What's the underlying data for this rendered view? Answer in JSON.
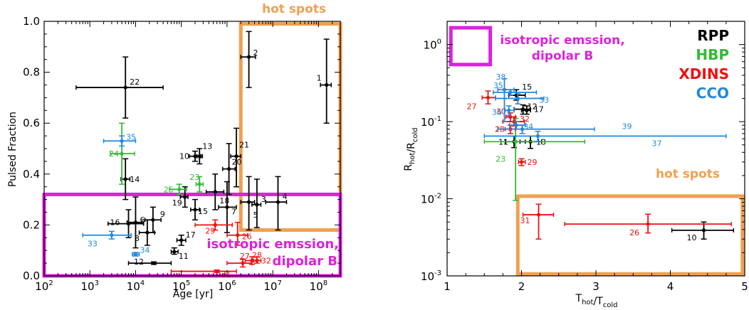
{
  "chart_data": [
    {
      "type": "scatter",
      "xscale": "log",
      "xlim": [
        100,
        300000000
      ],
      "ylim": [
        0,
        1
      ],
      "xlabel": "Age [yr]",
      "ylabel": "Pulsed Fraction",
      "xtick_values": [
        100,
        1000,
        10000,
        100000,
        1000000,
        10000000,
        100000000
      ],
      "xtick_base": "10",
      "xtick_exps": [
        "2",
        "3",
        "4",
        "5",
        "6",
        "7",
        "8"
      ],
      "ytick_values": [
        0,
        0.2,
        0.4,
        0.6,
        0.8,
        1.0
      ],
      "ytick_labels": [
        "0.0",
        "0.2",
        "0.4",
        "0.6",
        "0.8",
        "1.0"
      ],
      "class_colors": {
        "RPP": "#000000",
        "HBP": "#33bb33",
        "XDINS": "#ee1111",
        "CCO": "#2288dd"
      },
      "regions": [
        {
          "label": "hot spots",
          "color": "#f0a050",
          "x": [
            2000000,
            300000000
          ],
          "y": [
            0.18,
            0.99
          ]
        },
        {
          "label": "isotropic emssion, dipolar B",
          "color": "#dd22dd",
          "x": [
            100,
            300000000
          ],
          "y": [
            0,
            0.32
          ]
        }
      ],
      "points": [
        {
          "id": "1",
          "class": "RPP",
          "x": 150000000,
          "y": 0.75,
          "xerr": [
            110000000,
            190000000
          ],
          "yerr": [
            0.6,
            0.93
          ]
        },
        {
          "id": "2",
          "class": "RPP",
          "x": 3000000,
          "y": 0.86,
          "xerr": [
            2000000,
            4200000
          ],
          "yerr": [
            0.74,
            0.96
          ]
        },
        {
          "id": "3",
          "class": "RPP",
          "x": 4500000,
          "y": 0.28,
          "xerr": [
            3500000,
            5500000
          ],
          "yerr": [
            0.19,
            0.38
          ]
        },
        {
          "id": "4",
          "class": "RPP",
          "x": 13000000,
          "y": 0.29,
          "xerr": [
            7000000,
            20000000
          ],
          "yerr": [
            0.18,
            0.39
          ]
        },
        {
          "id": "5",
          "class": "RPP",
          "x": 3000000,
          "y": 0.29,
          "xerr": [
            2000000,
            4000000
          ],
          "yerr": [
            0.18,
            0.39
          ]
        },
        {
          "id": "6",
          "class": "RPP",
          "x": 10000,
          "y": 0.21,
          "xerr": [
            6500,
            14000
          ],
          "yerr": [
            0.11,
            0.31
          ]
        },
        {
          "id": "7",
          "class": "RPP",
          "x": 1000000,
          "y": 0.27,
          "xerr": [
            650000,
            1600000
          ],
          "yerr": [
            0.17,
            0.37
          ]
        },
        {
          "id": "8",
          "class": "RPP",
          "x": 18000,
          "y": 0.17,
          "xerr": [
            12000,
            26000
          ],
          "yerr": [
            0.12,
            0.22
          ]
        },
        {
          "id": "9",
          "class": "RPP",
          "x": 24000,
          "y": 0.22,
          "xerr": [
            16000,
            36000
          ],
          "yerr": [
            0.17,
            0.27
          ]
        },
        {
          "id": "10",
          "class": "RPP",
          "x": 200000,
          "y": 0.47,
          "xerr": [
            150000,
            270000
          ],
          "yerr": [
            0.45,
            0.49
          ]
        },
        {
          "id": "11",
          "class": "RPP",
          "x": 70000,
          "y": 0.095,
          "xerr": [
            60000,
            85000
          ],
          "yerr": [
            0.085,
            0.11
          ]
        },
        {
          "id": "12",
          "class": "RPP",
          "x": 25000,
          "y": 0.05,
          "xerr": [
            7000,
            60000
          ],
          "yerr": [
            0.045,
            0.055
          ]
        },
        {
          "id": "13",
          "class": "RPP",
          "x": 250000,
          "y": 0.47,
          "xerr": [
            220000,
            290000
          ],
          "yerr": [
            0.44,
            0.5
          ]
        },
        {
          "id": "14",
          "class": "RPP",
          "x": 6000,
          "y": 0.38,
          "xerr": [
            4800,
            7500
          ],
          "yerr": [
            0.3,
            0.46
          ]
        },
        {
          "id": "15",
          "class": "RPP",
          "x": 200000,
          "y": 0.26,
          "xerr": [
            160000,
            250000
          ],
          "yerr": [
            0.22,
            0.3
          ]
        },
        {
          "id": "16",
          "class": "RPP",
          "x": 7000,
          "y": 0.205,
          "xerr": [
            2500,
            15000
          ],
          "yerr": [
            0.15,
            0.26
          ]
        },
        {
          "id": "17",
          "class": "RPP",
          "x": 100000,
          "y": 0.14,
          "xerr": [
            80000,
            125000
          ],
          "yerr": [
            0.12,
            0.16
          ]
        },
        {
          "id": "18",
          "class": "RPP",
          "x": 550000,
          "y": 0.33,
          "xerr": [
            350000,
            850000
          ],
          "yerr": [
            0.26,
            0.4
          ]
        },
        {
          "id": "19",
          "class": "RPP",
          "x": 120000,
          "y": 0.31,
          "xerr": [
            95000,
            140000
          ],
          "yerr": [
            0.27,
            0.35
          ]
        },
        {
          "id": "20",
          "class": "RPP",
          "x": 1100000,
          "y": 0.42,
          "xerr": [
            800000,
            1500000
          ],
          "yerr": [
            0.32,
            0.52
          ]
        },
        {
          "id": "21",
          "class": "RPP",
          "x": 1600000,
          "y": 0.47,
          "xerr": [
            1200000,
            2000000
          ],
          "yerr": [
            0.35,
            0.58
          ]
        },
        {
          "id": "22",
          "class": "RPP",
          "x": 6000,
          "y": 0.74,
          "xerr": [
            500,
            40000
          ],
          "yerr": [
            0.62,
            0.86
          ]
        },
        {
          "id": "23",
          "class": "HBP",
          "x": 250000,
          "y": 0.36,
          "xerr": [
            210000,
            300000
          ],
          "yerr": [
            0.33,
            0.39
          ]
        },
        {
          "id": "24",
          "class": "HBP",
          "x": 5000,
          "y": 0.48,
          "xerr": [
            2800,
            9500
          ],
          "yerr": [
            0.36,
            0.6
          ]
        },
        {
          "id": "25",
          "class": "HBP",
          "x": 90000,
          "y": 0.34,
          "xerr": [
            55000,
            130000
          ],
          "yerr": [
            0.32,
            0.36
          ]
        },
        {
          "id": "26",
          "class": "XDINS",
          "x": 1700000,
          "y": 0.16,
          "xerr": [
            1000000,
            2800000
          ],
          "yerr": [
            0.12,
            0.21
          ]
        },
        {
          "id": "27",
          "class": "XDINS",
          "x": 2200000,
          "y": 0.05,
          "xerr": [
            1000000,
            3500000
          ],
          "yerr": [
            0.035,
            0.065
          ]
        },
        {
          "id": "28",
          "class": "XDINS",
          "x": 3500000,
          "y": 0.06,
          "xerr": [
            2500000,
            4500000
          ],
          "yerr": [
            0.045,
            0.075
          ]
        },
        {
          "id": "29",
          "class": "XDINS",
          "x": 550000,
          "y": 0.2,
          "xerr": [
            200000,
            1300000
          ],
          "yerr": [
            0.18,
            0.22
          ]
        },
        {
          "id": "31",
          "class": "XDINS",
          "x": 600000,
          "y": 0.018,
          "xerr": [
            60000,
            1600000
          ],
          "yerr": [
            0.013,
            0.023
          ]
        },
        {
          "id": "32",
          "class": "XDINS",
          "x": 4500000,
          "y": 0.06,
          "xerr": [
            3800000,
            5500000
          ],
          "yerr": [
            0.05,
            0.075
          ]
        },
        {
          "id": "33",
          "class": "CCO",
          "x": 3000,
          "y": 0.16,
          "xerr": [
            700,
            8000
          ],
          "yerr": [
            0.145,
            0.175
          ]
        },
        {
          "id": "34",
          "class": "CCO",
          "x": 10000,
          "y": 0.085,
          "xerr": [
            8500,
            12000
          ],
          "yerr": [
            0.078,
            0.092
          ]
        },
        {
          "id": "35",
          "class": "CCO",
          "x": 5000,
          "y": 0.53,
          "xerr": [
            2000,
            10000
          ],
          "yerr": [
            0.51,
            0.55
          ]
        }
      ]
    },
    {
      "type": "scatter",
      "yscale": "log",
      "xlim": [
        1,
        5
      ],
      "ylim": [
        0.001,
        2
      ],
      "xlabel": "T_hot/T_cold",
      "ylabel": "R_hot/R_cold",
      "xtick_values": [
        1,
        2,
        3,
        4,
        5
      ],
      "xtick_labels": [
        "1",
        "2",
        "3",
        "4",
        "5"
      ],
      "ytick_values": [
        0.001,
        0.01,
        0.1,
        1
      ],
      "ytick_base": "10",
      "ytick_exps": [
        "-3",
        "-2",
        "-1",
        "0"
      ],
      "legend": {
        "position": "top-right",
        "entries": [
          {
            "label": "RPP",
            "color": "#000000"
          },
          {
            "label": "HBP",
            "color": "#33bb33"
          },
          {
            "label": "XDINS",
            "color": "#ee1111"
          },
          {
            "label": "CCO",
            "color": "#2288dd"
          }
        ]
      },
      "regions": [
        {
          "label": "isotropic emssion, dipolar B",
          "color": "#dd22dd",
          "x": [
            1.05,
            1.58
          ],
          "y": [
            0.55,
            1.65
          ]
        },
        {
          "label": "hot spots",
          "color": "#f0a050",
          "x": [
            1.95,
            4.97
          ],
          "y": [
            0.00106,
            0.0108
          ]
        }
      ],
      "points": [
        {
          "id": "10",
          "class": "RPP",
          "x": 4.45,
          "y": 0.0039,
          "xerr": [
            4.02,
            4.85
          ],
          "yerr": [
            0.003,
            0.005
          ]
        },
        {
          "id": "11",
          "class": "RPP",
          "x": 1.9,
          "y": 0.055,
          "xerr": [
            1.78,
            2.05
          ],
          "yerr": [
            0.046,
            0.065
          ]
        },
        {
          "id": "12",
          "class": "RPP",
          "x": 2.02,
          "y": 0.145,
          "xerr": [
            1.9,
            2.12
          ],
          "yerr": [
            0.125,
            0.165
          ]
        },
        {
          "id": "13",
          "class": "RPP",
          "x": 2.12,
          "y": 0.055,
          "xerr": [
            1.98,
            2.27
          ],
          "yerr": [
            0.045,
            0.065
          ]
        },
        {
          "id": "15",
          "class": "RPP",
          "x": 1.93,
          "y": 0.22,
          "xerr": [
            1.83,
            2.05
          ],
          "yerr": [
            0.19,
            0.26
          ]
        },
        {
          "id": "17",
          "class": "RPP",
          "x": 2.07,
          "y": 0.14,
          "xerr": [
            2.0,
            2.12
          ],
          "yerr": [
            0.125,
            0.16
          ]
        },
        {
          "id": "23",
          "class": "HBP",
          "x": 1.92,
          "y": 0.055,
          "xerr": [
            1.5,
            2.85
          ],
          "yerr": [
            0.0095,
            0.11
          ]
        },
        {
          "id": "26",
          "class": "XDINS",
          "x": 3.7,
          "y": 0.0047,
          "xerr": [
            2.58,
            4.82
          ],
          "yerr": [
            0.0036,
            0.0063
          ]
        },
        {
          "id": "27",
          "class": "XDINS",
          "x": 1.55,
          "y": 0.205,
          "xerr": [
            1.47,
            1.65
          ],
          "yerr": [
            0.17,
            0.25
          ]
        },
        {
          "id": "28",
          "class": "XDINS",
          "x": 1.85,
          "y": 0.08,
          "xerr": [
            1.78,
            1.92
          ],
          "yerr": [
            0.07,
            0.09
          ]
        },
        {
          "id": "29",
          "class": "XDINS",
          "x": 2.0,
          "y": 0.03,
          "xerr": [
            1.96,
            2.05
          ],
          "yerr": [
            0.027,
            0.033
          ]
        },
        {
          "id": "30",
          "class": "XDINS",
          "x": 1.85,
          "y": 0.115,
          "xerr": [
            1.79,
            1.92
          ],
          "yerr": [
            0.1,
            0.13
          ]
        },
        {
          "id": "31",
          "class": "XDINS",
          "x": 2.23,
          "y": 0.0062,
          "xerr": [
            2.02,
            2.43
          ],
          "yerr": [
            0.003,
            0.0085
          ]
        },
        {
          "id": "32",
          "class": "XDINS",
          "x": 1.9,
          "y": 0.1,
          "xerr": [
            1.75,
            2.04
          ],
          "yerr": [
            0.088,
            0.115
          ]
        },
        {
          "id": "33",
          "class": "CCO",
          "x": 1.95,
          "y": 0.2,
          "xerr": [
            1.65,
            2.3
          ],
          "yerr": [
            0.17,
            0.23
          ]
        },
        {
          "id": "34",
          "class": "CCO",
          "x": 1.93,
          "y": 0.09,
          "xerr": [
            1.84,
            2.05
          ],
          "yerr": [
            0.08,
            0.1
          ]
        },
        {
          "id": "35",
          "class": "CCO",
          "x": 1.85,
          "y": 0.24,
          "xerr": [
            1.62,
            2.2
          ],
          "yerr": [
            0.22,
            0.26
          ]
        },
        {
          "id": "36",
          "class": "CCO",
          "x": 1.83,
          "y": 0.14,
          "xerr": [
            1.78,
            1.9
          ],
          "yerr": [
            0.12,
            0.16
          ]
        },
        {
          "id": "37",
          "class": "CCO",
          "x": 2.22,
          "y": 0.065,
          "xerr": [
            1.5,
            4.75
          ],
          "yerr": [
            0.055,
            0.075
          ]
        },
        {
          "id": "38",
          "class": "CCO",
          "x": 1.77,
          "y": 0.26,
          "xerr": [
            1.68,
            1.9
          ],
          "yerr": [
            0.1,
            0.36
          ]
        },
        {
          "id": "39",
          "class": "CCO",
          "x": 2.01,
          "y": 0.08,
          "xerr": [
            1.68,
            2.98
          ],
          "yerr": [
            0.07,
            0.09
          ]
        }
      ]
    }
  ]
}
